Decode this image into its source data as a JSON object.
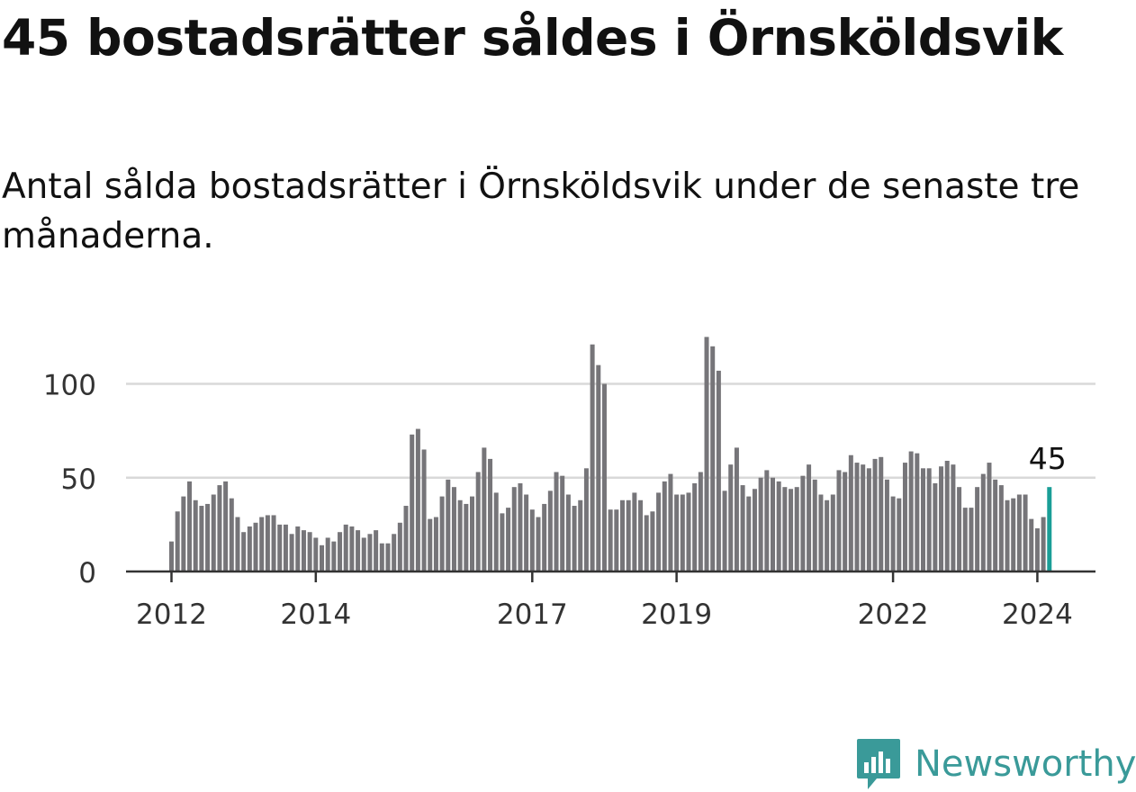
{
  "title": "45 bostadsrätter såldes i Örnsköldsvik",
  "subtitle": "Antal sålda bostadsrätter i Örnsköldsvik under de senaste tre månaderna.",
  "brand": {
    "name": "Newsworthy",
    "color": "#3a9a99"
  },
  "colors": {
    "bar": "#767579",
    "highlight": "#1a9e97",
    "grid": "#d9d9d9",
    "axis": "#333333"
  },
  "chart_data": {
    "type": "bar",
    "x_start": "2012-01",
    "y_ticks": [
      0,
      50,
      100
    ],
    "ylim": [
      0,
      125
    ],
    "x_tick_labels": [
      "2012",
      "2014",
      "2017",
      "2019",
      "2022",
      "2024"
    ],
    "x_tick_positions": [
      "2012-01",
      "2014-01",
      "2017-01",
      "2019-01",
      "2022-01",
      "2024-01"
    ],
    "grid": "horizontal",
    "values": [
      16,
      32,
      40,
      48,
      38,
      35,
      36,
      41,
      46,
      48,
      39,
      29,
      21,
      24,
      26,
      29,
      30,
      30,
      25,
      25,
      20,
      24,
      22,
      21,
      18,
      14,
      18,
      16,
      21,
      25,
      24,
      22,
      18,
      20,
      22,
      15,
      15,
      20,
      26,
      35,
      73,
      76,
      65,
      28,
      29,
      40,
      49,
      45,
      38,
      36,
      40,
      53,
      66,
      60,
      42,
      31,
      34,
      45,
      47,
      41,
      33,
      29,
      36,
      43,
      53,
      51,
      41,
      35,
      38,
      55,
      121,
      110,
      100,
      33,
      33,
      38,
      38,
      42,
      38,
      30,
      32,
      42,
      48,
      52,
      41,
      41,
      42,
      47,
      53,
      125,
      120,
      107,
      43,
      57,
      66,
      46,
      40,
      44,
      50,
      54,
      50,
      48,
      45,
      44,
      45,
      51,
      57,
      49,
      41,
      38,
      41,
      54,
      53,
      62,
      58,
      57,
      55,
      60,
      61,
      49,
      40,
      39,
      58,
      64,
      63,
      55,
      55,
      47,
      56,
      59,
      57,
      45,
      34,
      34,
      45,
      52,
      58,
      49,
      46,
      38,
      39,
      41,
      41,
      28,
      23,
      29,
      45
    ],
    "highlight_label": "45"
  }
}
